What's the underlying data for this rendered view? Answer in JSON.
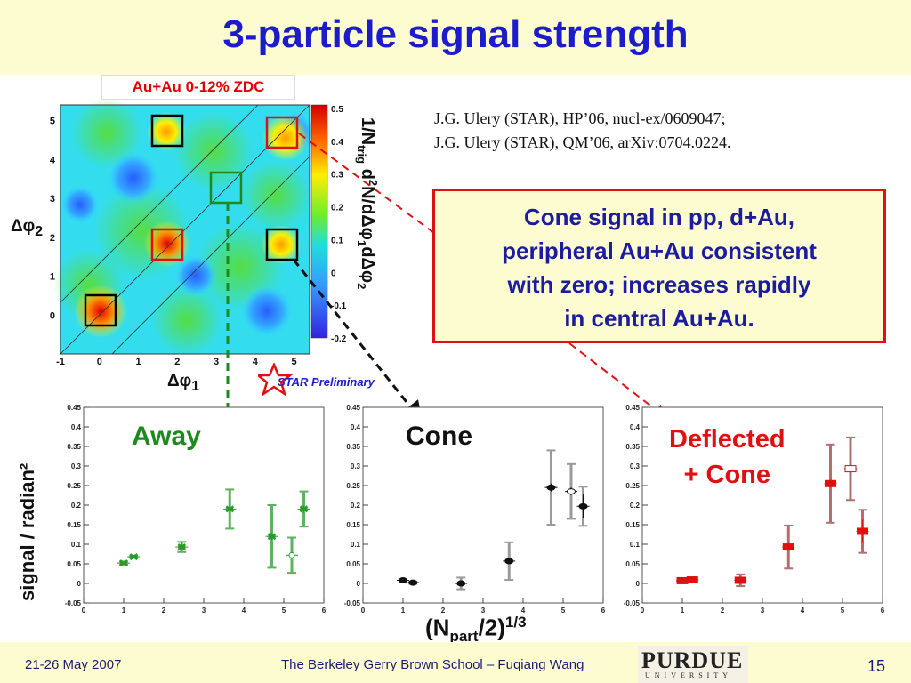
{
  "title": "3-particle signal strength",
  "heatmap": {
    "label": "Au+Au 0-12% ZDC",
    "xlabel": "Δφ1",
    "ylabel": "Δφ2",
    "xticks": [
      "-1",
      "0",
      "1",
      "2",
      "3",
      "4",
      "5"
    ],
    "yticks": [
      "0",
      "1",
      "2",
      "3",
      "4",
      "5"
    ],
    "zticks": [
      "0.5",
      "0.4",
      "0.3",
      "0.2",
      "0.1",
      "0",
      "-0.1",
      "-0.2"
    ],
    "zlabel": "1/Ntrig d²N/dΔφ1dΔφ2",
    "box_colors": {
      "away": "#000000",
      "cone": "#e01010",
      "diagonal": "#1e8a1e"
    }
  },
  "reference": {
    "line1": "J.G. Ulery (STAR), HP’06, nucl-ex/0609047;",
    "line2": "J.G. Ulery (STAR), QM’06, arXiv:0704.0224."
  },
  "callout": {
    "line1": "Cone signal in pp, d+Au,",
    "line2": "peripheral Au+Au consistent",
    "line3": "with zero; increases rapidly",
    "line4": "in central Au+Au."
  },
  "star_logo": "STAR Preliminary",
  "y_axis_label": "signal / radian²",
  "x_axis_label": "(Npart/2)1/3",
  "chart_data": [
    {
      "type": "scatter",
      "title": "Away",
      "xlim": [
        0,
        6
      ],
      "ylim": [
        -0.05,
        0.45
      ],
      "xticks": [
        0,
        1,
        2,
        3,
        4,
        5,
        6
      ],
      "yticks": [
        -0.05,
        0,
        0.05,
        0.1,
        0.15,
        0.2,
        0.25,
        0.3,
        0.35,
        0.4,
        0.45
      ],
      "color": "#2a9a2a",
      "syscolor": "#5fb25f",
      "points": [
        {
          "x": 1.0,
          "y": 0.052,
          "err": 0.004,
          "sys": 0.004
        },
        {
          "x": 1.25,
          "y": 0.068,
          "err": 0.003,
          "sys": 0.003
        },
        {
          "x": 2.45,
          "y": 0.093,
          "err": 0.01,
          "sys": 0.013
        },
        {
          "x": 3.65,
          "y": 0.19,
          "err": 0.012,
          "sys": 0.05
        },
        {
          "x": 4.7,
          "y": 0.12,
          "err": 0.01,
          "sys": 0.08
        },
        {
          "x": 5.2,
          "y": 0.072,
          "err": 0.008,
          "sys": 0.045,
          "open": true
        },
        {
          "x": 5.5,
          "y": 0.19,
          "err": 0.01,
          "sys": 0.045
        }
      ]
    },
    {
      "type": "scatter",
      "title": "Cone",
      "xlim": [
        0,
        6
      ],
      "ylim": [
        -0.05,
        0.45
      ],
      "xticks": [
        0,
        1,
        2,
        3,
        4,
        5,
        6
      ],
      "yticks": [
        -0.05,
        0,
        0.05,
        0.1,
        0.15,
        0.2,
        0.25,
        0.3,
        0.35,
        0.4,
        0.45
      ],
      "color": "#111111",
      "syscolor": "#9a9a9a",
      "points": [
        {
          "x": 1.0,
          "y": 0.008,
          "err": 0.003,
          "sys": 0.003
        },
        {
          "x": 1.25,
          "y": 0.002,
          "err": 0.003,
          "sys": 0.003
        },
        {
          "x": 2.45,
          "y": 0.0,
          "err": 0.006,
          "sys": 0.015
        },
        {
          "x": 3.65,
          "y": 0.057,
          "err": 0.008,
          "sys": 0.048
        },
        {
          "x": 4.7,
          "y": 0.245,
          "err": 0.01,
          "sys": 0.095
        },
        {
          "x": 5.2,
          "y": 0.235,
          "err": 0.01,
          "sys": 0.07,
          "open": true
        },
        {
          "x": 5.5,
          "y": 0.197,
          "err": 0.03,
          "sys": 0.05
        }
      ]
    },
    {
      "type": "scatter",
      "title": "Deflected + Cone",
      "xlim": [
        0,
        6
      ],
      "ylim": [
        -0.05,
        0.45
      ],
      "xticks": [
        0,
        1,
        2,
        3,
        4,
        5,
        6
      ],
      "yticks": [
        -0.05,
        0,
        0.05,
        0.1,
        0.15,
        0.2,
        0.25,
        0.3,
        0.35,
        0.4,
        0.45
      ],
      "color": "#e01010",
      "syscolor": "#b07070",
      "points": [
        {
          "x": 1.0,
          "y": 0.007,
          "err": 0.003,
          "sys": 0.003
        },
        {
          "x": 1.25,
          "y": 0.009,
          "err": 0.003,
          "sys": 0.003
        },
        {
          "x": 2.45,
          "y": 0.008,
          "err": 0.005,
          "sys": 0.015
        },
        {
          "x": 3.65,
          "y": 0.093,
          "err": 0.01,
          "sys": 0.055
        },
        {
          "x": 4.7,
          "y": 0.255,
          "err": 0.01,
          "sys": 0.1
        },
        {
          "x": 5.2,
          "y": 0.293,
          "err": 0.01,
          "sys": 0.08,
          "open": true
        },
        {
          "x": 5.5,
          "y": 0.133,
          "err": 0.03,
          "sys": 0.055
        }
      ]
    }
  ],
  "panel_labels": {
    "away": "Away",
    "cone": "Cone",
    "deflected_line1": "Deflected",
    "deflected_line2": "+ Cone"
  },
  "footer": {
    "date": "21-26 May 2007",
    "center": "The Berkeley Gerry Brown School – Fuqiang Wang",
    "page": "15",
    "logo_line1": "PURDUE",
    "logo_line2": "UNIVERSITY"
  }
}
